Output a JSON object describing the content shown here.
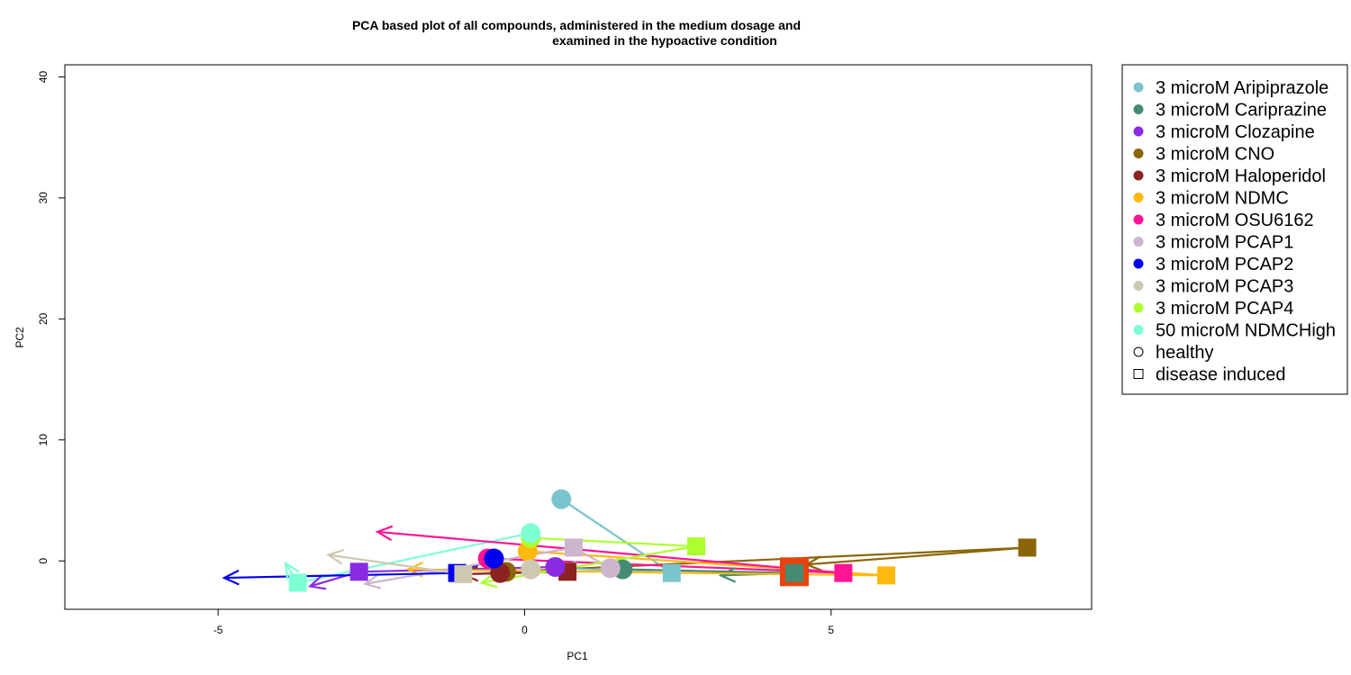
{
  "chart_data": {
    "type": "scatter",
    "title_lines": [
      "PCA based plot of all compounds, administered in the medium dosage and",
      "examined in the hypoactive condition"
    ],
    "xlabel": "PC1",
    "ylabel": "PC2",
    "xlim": [
      -7.5,
      9.25
    ],
    "ylim": [
      -4,
      41
    ],
    "xticks": [
      -5,
      0,
      5
    ],
    "yticks": [
      0,
      10,
      20,
      30,
      40
    ],
    "grid": false,
    "legend_position": "right",
    "legend": [
      {
        "label": "3 microM Aripiprazole",
        "color": "#7AC5CD",
        "shape": "circle"
      },
      {
        "label": "3 microM Cariprazine",
        "color": "#458B74",
        "shape": "circle"
      },
      {
        "label": "3 microM Clozapine",
        "color": "#8A2BE2",
        "shape": "circle"
      },
      {
        "label": "3 microM CNO",
        "color": "#8B6508",
        "shape": "circle"
      },
      {
        "label": "3 microM Haloperidol",
        "color": "#8B2323",
        "shape": "circle"
      },
      {
        "label": "3 microM NDMC",
        "color": "#FFB90F",
        "shape": "circle"
      },
      {
        "label": "3 microM OSU6162",
        "color": "#FF1493",
        "shape": "circle"
      },
      {
        "label": "3 microM PCAP1",
        "color": "#CDB5CD",
        "shape": "circle"
      },
      {
        "label": "3 microM PCAP2",
        "color": "#0000EE",
        "shape": "circle"
      },
      {
        "label": "3 microM PCAP3",
        "color": "#CDC8B1",
        "shape": "circle"
      },
      {
        "label": "3 microM PCAP4",
        "color": "#ADFF2F",
        "shape": "circle"
      },
      {
        "label": "50 microM NDMCHigh",
        "color": "#7FFFD4",
        "shape": "circle"
      },
      {
        "label": "healthy",
        "color": "#000000",
        "shape": "open-circle"
      },
      {
        "label": "disease induced",
        "color": "#000000",
        "shape": "open-square"
      }
    ],
    "series": [
      {
        "name": "3 microM Aripiprazole",
        "color": "#7AC5CD",
        "healthy": [
          0.6,
          5.1
        ],
        "disease": [
          2.4,
          -1.0
        ],
        "arrow_to": [
          0.6,
          -0.6
        ]
      },
      {
        "name": "3 microM Cariprazine",
        "color": "#458B74",
        "healthy": [
          1.6,
          -0.7
        ],
        "disease": [
          4.4,
          -1.0
        ],
        "arrow_to": [
          3.2,
          -1.2
        ]
      },
      {
        "name": "3 microM Clozapine",
        "color": "#8A2BE2",
        "healthy": [
          0.5,
          -0.5
        ],
        "disease": [
          -2.7,
          -0.9
        ],
        "arrow_to": [
          -3.5,
          -2.1
        ]
      },
      {
        "name": "3 microM CNO",
        "color": "#8B6508",
        "healthy": [
          -0.3,
          -0.9
        ],
        "disease": [
          8.2,
          1.1
        ],
        "arrow_to": [
          4.6,
          -0.3
        ]
      },
      {
        "name": "3 microM Haloperidol",
        "color": "#8B2323",
        "healthy": [
          -0.4,
          -1.0
        ],
        "disease": [
          0.7,
          -0.9
        ],
        "arrow_to": [
          -1.0,
          -1.1
        ]
      },
      {
        "name": "3 microM NDMC",
        "color": "#FFB90F",
        "healthy": [
          0.05,
          0.8
        ],
        "disease": [
          5.9,
          -1.2
        ],
        "arrow_to": [
          -1.9,
          -0.7
        ]
      },
      {
        "name": "3 microM OSU6162",
        "color": "#FF1493",
        "healthy": [
          -0.6,
          0.2
        ],
        "disease": [
          5.2,
          -1.0
        ],
        "arrow_to": [
          -2.4,
          2.4
        ]
      },
      {
        "name": "3 microM PCAP1",
        "color": "#CDB5CD",
        "healthy": [
          1.4,
          -0.6
        ],
        "disease": [
          0.8,
          1.1
        ],
        "arrow_to": [
          -2.6,
          -1.9
        ]
      },
      {
        "name": "3 microM PCAP2",
        "color": "#0000EE",
        "healthy": [
          -0.5,
          0.2
        ],
        "disease": [
          -1.1,
          -1.0
        ],
        "arrow_to": [
          -4.9,
          -1.4
        ]
      },
      {
        "name": "3 microM PCAP3",
        "color": "#CDC8B1",
        "healthy": [
          0.1,
          -0.7
        ],
        "disease": [
          -1.0,
          -1.1
        ],
        "arrow_to": [
          -3.2,
          0.5
        ]
      },
      {
        "name": "3 microM PCAP4",
        "color": "#ADFF2F",
        "healthy": [
          0.1,
          1.9
        ],
        "disease": [
          2.8,
          1.2
        ],
        "arrow_to": [
          -0.7,
          -1.8
        ]
      },
      {
        "name": "50 microM NDMCHigh",
        "color": "#7FFFD4",
        "healthy": [
          0.1,
          2.3
        ],
        "disease": [
          -3.7,
          -1.8
        ],
        "arrow_to": [
          -3.9,
          -0.2
        ]
      }
    ],
    "extra_overlap_marker": {
      "color": "#E8430C",
      "at": [
        4.4,
        -0.9
      ],
      "shape": "square"
    }
  }
}
